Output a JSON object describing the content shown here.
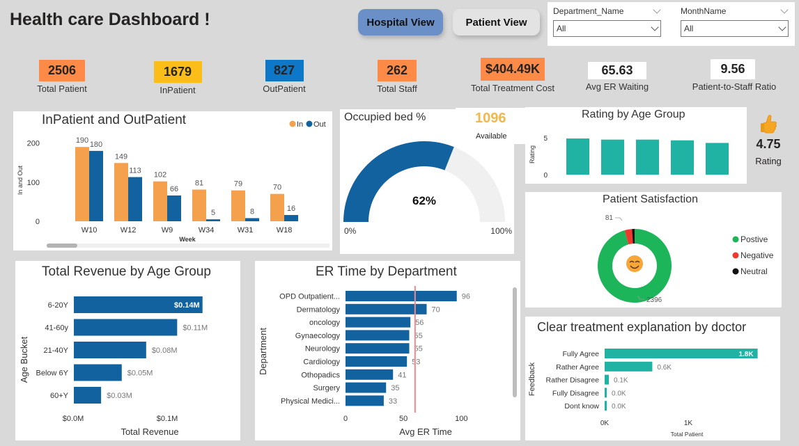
{
  "header": {
    "title": "Health care Dashboard !",
    "nav": {
      "hospital_view": "Hospital View",
      "patient_view": "Patient View"
    },
    "slicers": [
      {
        "label": "Department_Name",
        "value": "All"
      },
      {
        "label": "MonthName",
        "value": "All"
      }
    ]
  },
  "kpis": [
    {
      "value": "2506",
      "label": "Total Patient",
      "color": "#fd8a47"
    },
    {
      "value": "1679",
      "label": "InPatient",
      "color": "#fbbd18"
    },
    {
      "value": "827",
      "label": "OutPatient",
      "color": "#0f77c8"
    },
    {
      "value": "262",
      "label": "Total Staff",
      "color": "#fd8a47"
    },
    {
      "value": "$404.49K",
      "label": "Total Treatment Cost",
      "color": "#fd8a47"
    },
    {
      "value": "65.63",
      "label": "Avg ER Waiting",
      "color": "#ffffff"
    },
    {
      "value": "9.56",
      "label": "Patient-to-Staff Ratio",
      "color": "#ffffff"
    }
  ],
  "rating_card": {
    "value": "4.75",
    "label": "Rating",
    "icon": "thumbs-up-icon"
  },
  "colors": {
    "orange": "#f4a04d",
    "blue": "#12629f",
    "teal": "#20b2a2",
    "green": "#1db55a",
    "red": "#ee3a2e",
    "black": "#111111",
    "gauge_bg": "#f0f0f0",
    "avail": "#f2b84b",
    "ref_line": "#f08a8a"
  },
  "chart_data": [
    {
      "id": "inout",
      "type": "bar",
      "title": "InPatient and OutPatient",
      "categories": [
        "W10",
        "W12",
        "W9",
        "W34",
        "W31",
        "W18"
      ],
      "series": [
        {
          "name": "In",
          "values": [
            190,
            149,
            102,
            81,
            79,
            70
          ]
        },
        {
          "name": "Out",
          "values": [
            180,
            113,
            66,
            5,
            8,
            16
          ]
        }
      ],
      "xlabel": "Week",
      "ylabel": "In and Out",
      "yticks": [
        0,
        100,
        200
      ],
      "ylim": [
        0,
        210
      ],
      "legend": "top-right"
    },
    {
      "id": "gauge",
      "type": "gauge",
      "title": "Occupied bed %",
      "value": 62,
      "value_label": "62%",
      "min_label": "0%",
      "max_label": "100%",
      "available_value": "1096",
      "available_label": "Available"
    },
    {
      "id": "rating",
      "type": "bar",
      "title": "Rating by Age Group",
      "categories": [
        "",
        "",
        "",
        "",
        ""
      ],
      "values": [
        4.9,
        4.75,
        4.75,
        4.65,
        4.3
      ],
      "ylabel": "Rating",
      "yticks": [
        0,
        5
      ],
      "ylim": [
        0,
        5
      ]
    },
    {
      "id": "satisfaction",
      "type": "pie",
      "title": "Patient Satisfaction",
      "labels": [
        "Postive",
        "Negative",
        "Neutral"
      ],
      "values": [
        2396,
        81,
        29
      ],
      "data_labels": [
        "2396",
        "81",
        ""
      ],
      "legend": "right",
      "center_icon": "smiling-face-icon"
    },
    {
      "id": "revenue",
      "type": "bar",
      "orientation": "horizontal",
      "title": "Total Revenue by Age Group",
      "categories": [
        "6-20Y",
        "41-60y",
        "21-40Y",
        "Below 6Y",
        "60+Y"
      ],
      "values": [
        0.137,
        0.11,
        0.077,
        0.051,
        0.029
      ],
      "data_labels": [
        "$0.14M",
        "$0.11M",
        "$0.08M",
        "$0.05M",
        "$0.03M"
      ],
      "xlabel": "Total Revenue",
      "ylabel": "Age Bucket",
      "xticks": [
        "$0.0M",
        "$0.1M"
      ],
      "xlim": [
        0,
        0.155
      ]
    },
    {
      "id": "er",
      "type": "bar",
      "orientation": "horizontal",
      "title": "ER Time by Department",
      "categories": [
        "OPD Outpatient...",
        "Dermatology",
        "oncology",
        "Gynaecology",
        "Neurology",
        "Cardiology",
        "Othopadics",
        "Surgery",
        "Physical Medici..."
      ],
      "values": [
        96,
        70,
        56,
        55,
        55,
        53,
        41,
        35,
        33
      ],
      "xlabel": "Avg ER Time",
      "ylabel": "Department",
      "xticks": [
        0,
        50,
        100
      ],
      "xlim": [
        0,
        110
      ],
      "reference_line": 60
    },
    {
      "id": "explain",
      "type": "bar",
      "orientation": "horizontal",
      "title": "Clear treatment explanation by doctor",
      "categories": [
        "Fully Agree",
        "Rather Agree",
        "Rather Disagree",
        "Fully Disagree",
        "Dont know"
      ],
      "values": [
        1.83,
        0.57,
        0.05,
        0.02,
        0.02
      ],
      "data_labels": [
        "1.8K",
        "0.6K",
        "0.1K",
        "0.0K",
        "0.0K"
      ],
      "xlabel": "Total Patient",
      "ylabel": "Feedback",
      "xticks": [
        "0K",
        "1K"
      ],
      "xlim": [
        0,
        2.0
      ]
    }
  ]
}
